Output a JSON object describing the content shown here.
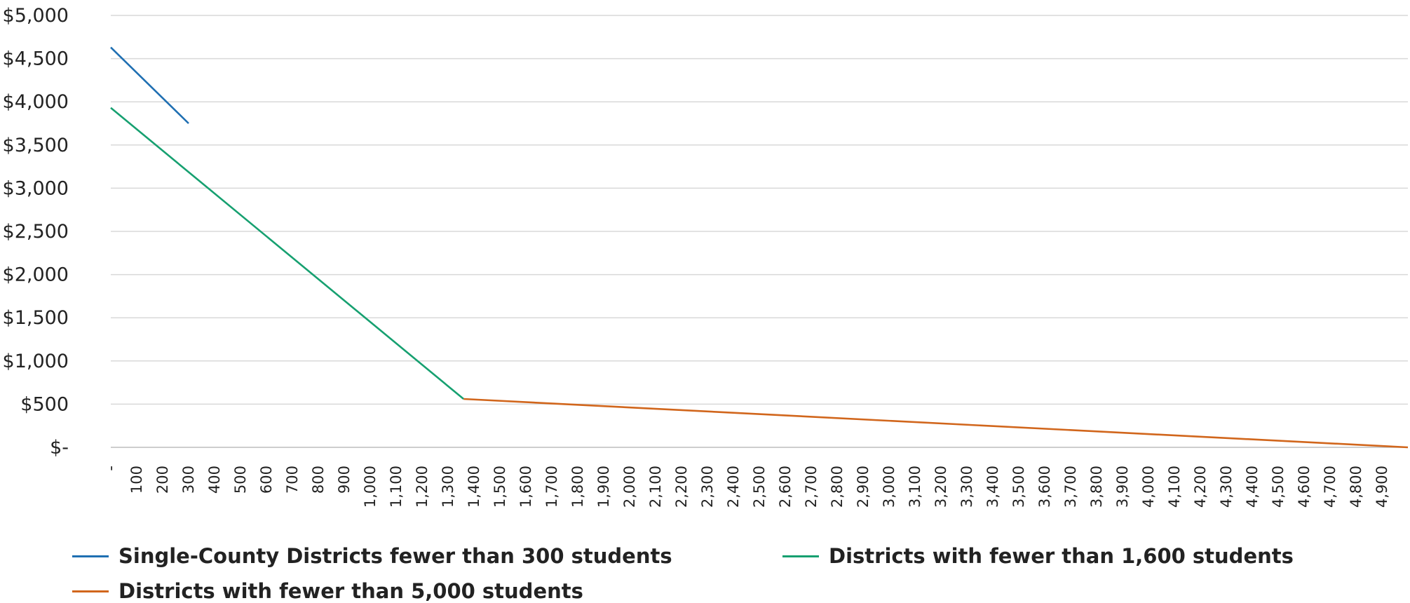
{
  "chart_data": {
    "type": "line",
    "title": "",
    "xlabel": "",
    "ylabel": "",
    "ylim": [
      0,
      5000
    ],
    "xlim": [
      0,
      5000
    ],
    "grid": true,
    "legend_position": "bottom",
    "y_ticks": [
      "$-",
      "$500",
      "$1,000",
      "$1,500",
      "$2,000",
      "$2,500",
      "$3,000",
      "$3,500",
      "$4,000",
      "$4,500",
      "$5,000"
    ],
    "x_ticks": [
      "-",
      "100",
      "200",
      "300",
      "400",
      "500",
      "600",
      "700",
      "800",
      "900",
      "1,000",
      "1,100",
      "1,200",
      "1,300",
      "1,400",
      "1,500",
      "1,600",
      "1,700",
      "1,800",
      "1,900",
      "2,000",
      "2,100",
      "2,200",
      "2,300",
      "2,400",
      "2,500",
      "2,600",
      "2,700",
      "2,800",
      "2,900",
      "3,000",
      "3,100",
      "3,200",
      "3,300",
      "3,400",
      "3,500",
      "3,600",
      "3,700",
      "3,800",
      "3,900",
      "4,000",
      "4,100",
      "4,200",
      "4,300",
      "4,400",
      "4,500",
      "4,600",
      "4,700",
      "4,800",
      "4,900"
    ],
    "series": [
      {
        "name": "Single-County Districts fewer than 300 students",
        "color": "#1f6fb2",
        "x": [
          0,
          300
        ],
        "y": [
          4630,
          3750
        ]
      },
      {
        "name": "Districts with fewer than 1,600 students",
        "color": "#16a070",
        "x": [
          0,
          1360
        ],
        "y": [
          3930,
          560
        ]
      },
      {
        "name": "Districts with fewer than 5,000 students",
        "color": "#d1661c",
        "x": [
          1360,
          5000
        ],
        "y": [
          560,
          0
        ]
      }
    ]
  }
}
